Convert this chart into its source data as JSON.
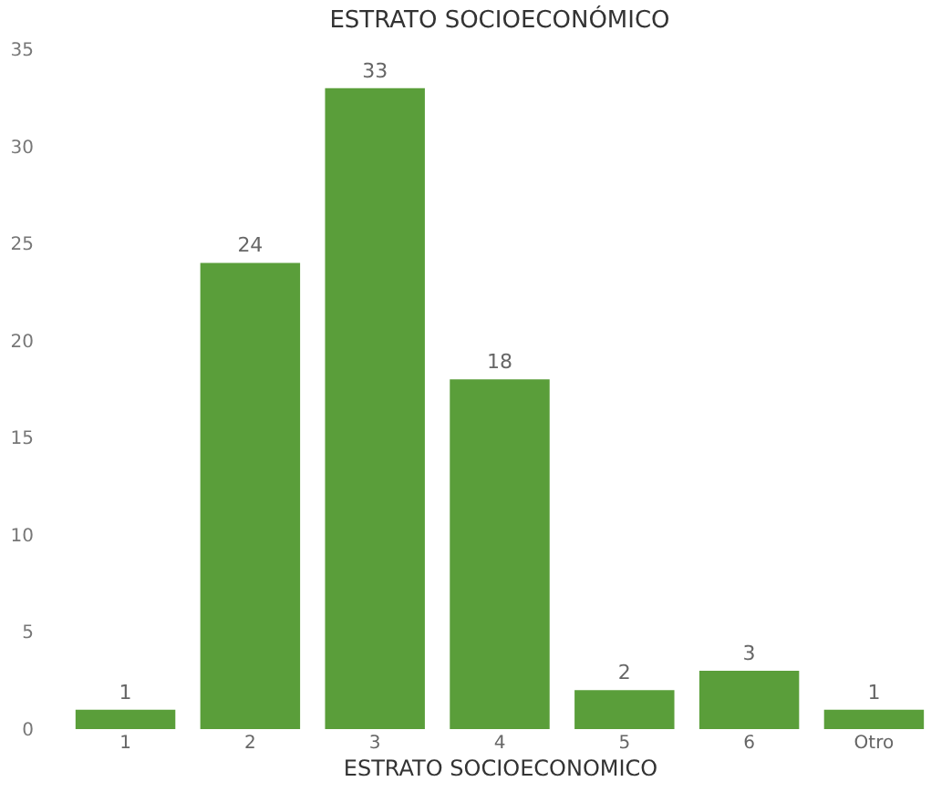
{
  "chart_data": {
    "type": "bar",
    "title": "ESTRATO SOCIOECONÓMICO",
    "xlabel": "ESTRATO SOCIOECONOMICO",
    "categories": [
      "1",
      "2",
      "3",
      "4",
      "5",
      "6",
      "Otro"
    ],
    "values": [
      1,
      24,
      33,
      18,
      2,
      3,
      1
    ],
    "color": "#5a9e3a",
    "ylim": [
      0,
      35
    ],
    "yticks": [
      0,
      5,
      10,
      15,
      20,
      25,
      30,
      35
    ],
    "data_labels": true,
    "grid": false
  }
}
